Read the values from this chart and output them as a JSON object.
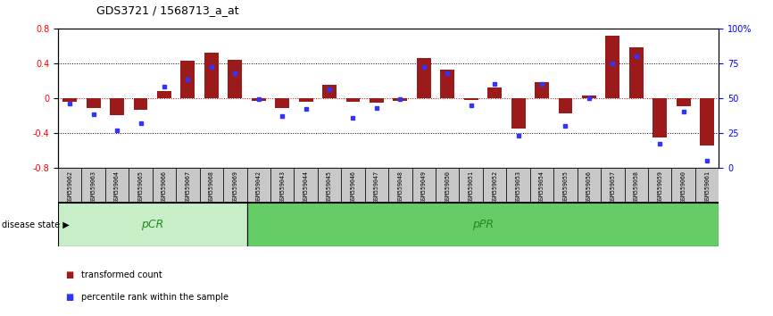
{
  "title": "GDS3721 / 1568713_a_at",
  "samples": [
    "GSM559062",
    "GSM559063",
    "GSM559064",
    "GSM559065",
    "GSM559066",
    "GSM559067",
    "GSM559068",
    "GSM559069",
    "GSM559042",
    "GSM559043",
    "GSM559044",
    "GSM559045",
    "GSM559046",
    "GSM559047",
    "GSM559048",
    "GSM559049",
    "GSM559050",
    "GSM559051",
    "GSM559052",
    "GSM559053",
    "GSM559054",
    "GSM559055",
    "GSM559056",
    "GSM559057",
    "GSM559058",
    "GSM559059",
    "GSM559060",
    "GSM559061"
  ],
  "red_bars": [
    -0.04,
    -0.12,
    -0.2,
    -0.14,
    0.08,
    0.43,
    0.52,
    0.44,
    -0.03,
    -0.12,
    -0.04,
    0.15,
    -0.04,
    -0.05,
    -0.03,
    0.46,
    0.33,
    -0.02,
    0.12,
    -0.35,
    0.18,
    -0.18,
    0.03,
    0.72,
    0.58,
    -0.45,
    -0.1,
    -0.55
  ],
  "blue_dots": [
    46,
    38,
    27,
    32,
    58,
    63,
    72,
    68,
    49,
    37,
    42,
    56,
    36,
    43,
    49,
    72,
    68,
    45,
    60,
    23,
    60,
    30,
    50,
    75,
    80,
    17,
    40,
    5
  ],
  "pCR_indices": [
    0,
    8
  ],
  "pPR_indices": [
    8,
    28
  ],
  "ylim_left": [
    -0.8,
    0.8
  ],
  "ylim_right": [
    0,
    100
  ],
  "yticks_left": [
    -0.8,
    -0.4,
    0.0,
    0.4,
    0.8
  ],
  "yticks_right": [
    0,
    25,
    50,
    75,
    100
  ],
  "ytick_labels_right": [
    "0",
    "25",
    "50",
    "75",
    "100%"
  ],
  "bar_color": "#9B1A1A",
  "dot_color": "#3333FF",
  "pCR_color": "#C8EEC8",
  "pPR_color": "#66CC66",
  "label_color": "#228B22",
  "tick_area_color": "#C8C8C8",
  "zero_line_color": "#CC0000",
  "legend_red": "transformed count",
  "legend_blue": "percentile rank within the sample",
  "disease_state_label": "disease state",
  "pCR_label": "pCR",
  "pPR_label": "pPR"
}
